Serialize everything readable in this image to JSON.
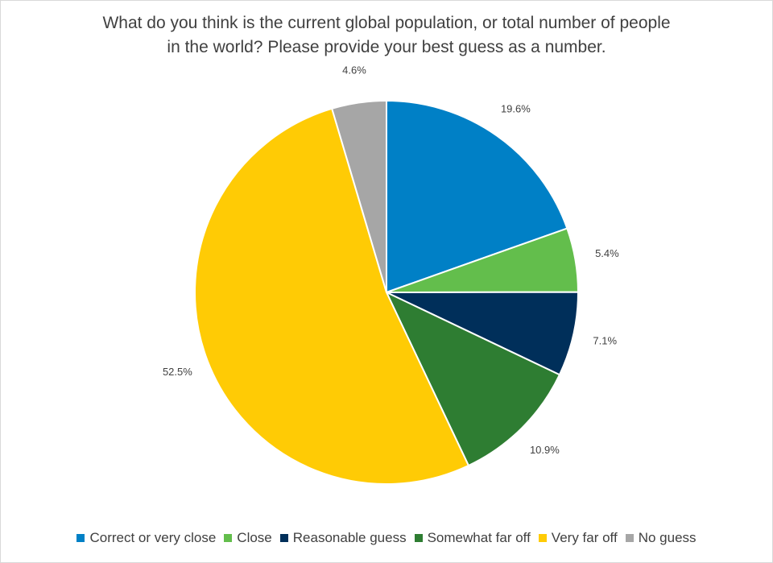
{
  "chart_data": {
    "type": "pie",
    "title": "What do you think is the current global population, or total number of people in the world? Please provide your best guess as a number.",
    "title_lines": [
      "What do you think is the current global population, or total number of people",
      "in the world? Please provide your best guess as a number."
    ],
    "categories": [
      "Correct or very close",
      "Close",
      "Reasonable guess",
      "Somewhat far off",
      "Very far off",
      "No guess"
    ],
    "values": [
      19.6,
      5.4,
      7.1,
      10.9,
      52.5,
      4.6
    ],
    "data_labels": [
      "19.6%",
      "5.4%",
      "7.1%",
      "10.9%",
      "52.5%",
      "4.6%"
    ],
    "colors": [
      "#0080C6",
      "#63BE4C",
      "#002F5A",
      "#2E7D32",
      "#FFCB05",
      "#A6A6A6"
    ],
    "legend_position": "bottom",
    "start_angle": "12 o'clock",
    "direction": "clockwise"
  }
}
